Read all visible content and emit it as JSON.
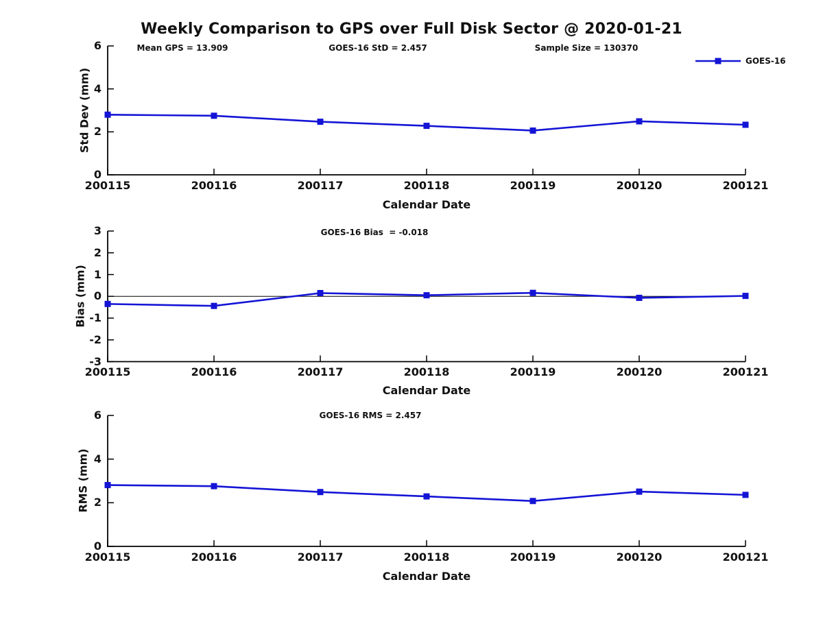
{
  "title": "Weekly Comparison to GPS over Full Disk Sector @ 2020-01-21",
  "legend": {
    "label": "GOES-16",
    "color": "#1414d6",
    "position": "outside-upper-right",
    "frame": false
  },
  "style": {
    "line_color": "#1414d6",
    "marker": "square",
    "axis_color": "#000000",
    "text_color": "#111111",
    "background": "#ffffff"
  },
  "chart_data": [
    {
      "type": "line",
      "ylabel": "Std Dev (mm)",
      "xlabel": "Calendar Date",
      "annotations": [
        "Mean GPS = 13.909",
        "GOES-16 StD = 2.457",
        "Sample Size = 130370"
      ],
      "categories": [
        "200115",
        "200116",
        "200117",
        "200118",
        "200119",
        "200120",
        "200121"
      ],
      "series": [
        {
          "name": "GOES-16",
          "values": [
            2.8,
            2.75,
            2.47,
            2.28,
            2.06,
            2.49,
            2.33
          ]
        }
      ],
      "ylim": [
        0,
        6
      ],
      "yticks": [
        0,
        2,
        4,
        6
      ],
      "grid": false,
      "zero_line": false
    },
    {
      "type": "line",
      "ylabel": "Bias (mm)",
      "xlabel": "Calendar Date",
      "annotations": [
        "GOES-16 Bias  = -0.018"
      ],
      "categories": [
        "200115",
        "200116",
        "200117",
        "200118",
        "200119",
        "200120",
        "200121"
      ],
      "series": [
        {
          "name": "GOES-16",
          "values": [
            -0.35,
            -0.44,
            0.15,
            0.05,
            0.16,
            -0.07,
            0.02
          ]
        }
      ],
      "ylim": [
        -3,
        3
      ],
      "yticks": [
        -3,
        -2,
        -1,
        0,
        1,
        2,
        3
      ],
      "grid": false,
      "zero_line": true
    },
    {
      "type": "line",
      "ylabel": "RMS (mm)",
      "xlabel": "Calendar Date",
      "annotations": [
        "GOES-16 RMS = 2.457"
      ],
      "categories": [
        "200115",
        "200116",
        "200117",
        "200118",
        "200119",
        "200120",
        "200121"
      ],
      "series": [
        {
          "name": "GOES-16",
          "values": [
            2.81,
            2.76,
            2.49,
            2.29,
            2.08,
            2.51,
            2.36
          ]
        }
      ],
      "ylim": [
        0,
        6
      ],
      "yticks": [
        0,
        2,
        4,
        6
      ],
      "grid": false,
      "zero_line": false
    }
  ]
}
